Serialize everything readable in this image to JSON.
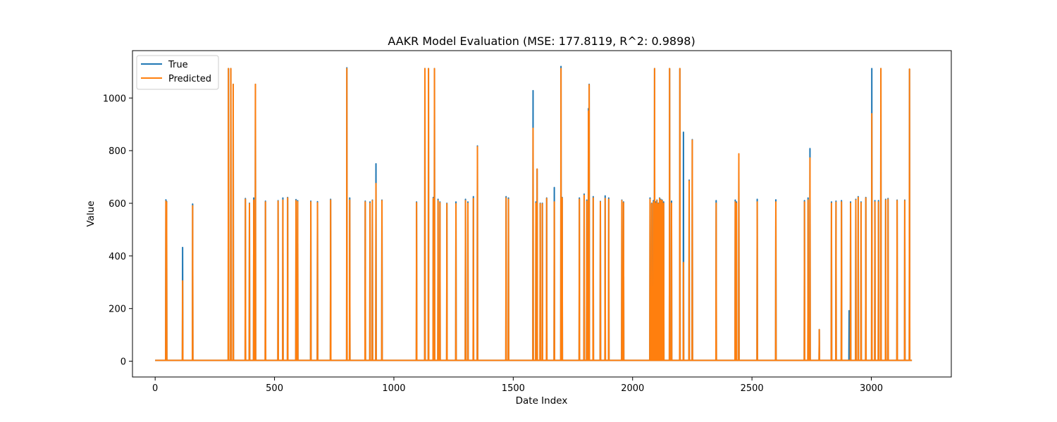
{
  "chart_data": {
    "type": "line",
    "title": "AAKR Model Evaluation (MSE: 177.8119, R^2: 0.9898)",
    "xlabel": "Date Index",
    "ylabel": "Value",
    "xlim": [
      -95,
      3335
    ],
    "ylim": [
      -60,
      1180
    ],
    "xticks": [
      0,
      500,
      1000,
      1500,
      2000,
      2500,
      3000
    ],
    "xtick_labels": [
      "0",
      "500",
      "1000",
      "1500",
      "2000",
      "2500",
      "3000"
    ],
    "yticks": [
      0,
      200,
      400,
      600,
      800,
      1000
    ],
    "ytick_labels": [
      "0",
      "200",
      "400",
      "600",
      "800",
      "1000"
    ],
    "grid": false,
    "legend_position": "top-left",
    "x_start": 0,
    "x_end": 3170,
    "baseline": 3,
    "series": [
      {
        "name": "True",
        "color": "#1f77b4",
        "spikes": [
          [
            45,
            613
          ],
          [
            48,
            607
          ],
          [
            115,
            432
          ],
          [
            157,
            597
          ],
          [
            307,
            1112
          ],
          [
            317,
            1112
          ],
          [
            327,
            1052
          ],
          [
            378,
            618
          ],
          [
            395,
            600
          ],
          [
            413,
            620
          ],
          [
            420,
            1052
          ],
          [
            462,
            608
          ],
          [
            515,
            610
          ],
          [
            535,
            620
          ],
          [
            555,
            622
          ],
          [
            590,
            614
          ],
          [
            597,
            610
          ],
          [
            652,
            608
          ],
          [
            680,
            606
          ],
          [
            735,
            615
          ],
          [
            803,
            1115
          ],
          [
            815,
            620
          ],
          [
            880,
            608
          ],
          [
            900,
            605
          ],
          [
            910,
            612
          ],
          [
            925,
            750
          ],
          [
            950,
            612
          ],
          [
            1095,
            605
          ],
          [
            1130,
            1112
          ],
          [
            1145,
            1112
          ],
          [
            1165,
            622
          ],
          [
            1170,
            1112
          ],
          [
            1185,
            615
          ],
          [
            1193,
            605
          ],
          [
            1222,
            600
          ],
          [
            1260,
            605
          ],
          [
            1300,
            615
          ],
          [
            1310,
            605
          ],
          [
            1333,
            625
          ],
          [
            1350,
            818
          ],
          [
            1470,
            625
          ],
          [
            1480,
            620
          ],
          [
            1583,
            1028
          ],
          [
            1595,
            605
          ],
          [
            1600,
            730
          ],
          [
            1613,
            600
          ],
          [
            1622,
            600
          ],
          [
            1640,
            620
          ],
          [
            1672,
            660
          ],
          [
            1700,
            1120
          ],
          [
            1705,
            622
          ],
          [
            1777,
            620
          ],
          [
            1797,
            635
          ],
          [
            1808,
            612
          ],
          [
            1815,
            960
          ],
          [
            1818,
            1052
          ],
          [
            1835,
            625
          ],
          [
            1865,
            607
          ],
          [
            1885,
            628
          ],
          [
            1900,
            620
          ],
          [
            1955,
            612
          ],
          [
            1962,
            605
          ],
          [
            2073,
            620
          ],
          [
            2080,
            600
          ],
          [
            2087,
            610
          ],
          [
            2092,
            1112
          ],
          [
            2097,
            605
          ],
          [
            2102,
            612
          ],
          [
            2108,
            600
          ],
          [
            2113,
            620
          ],
          [
            2118,
            615
          ],
          [
            2124,
            612
          ],
          [
            2130,
            605
          ],
          [
            2155,
            1112
          ],
          [
            2163,
            608
          ],
          [
            2198,
            1112
          ],
          [
            2213,
            870
          ],
          [
            2237,
            688
          ],
          [
            2250,
            842
          ],
          [
            2350,
            610
          ],
          [
            2430,
            612
          ],
          [
            2435,
            605
          ],
          [
            2445,
            755
          ],
          [
            2522,
            615
          ],
          [
            2600,
            613
          ],
          [
            2720,
            610
          ],
          [
            2735,
            620
          ],
          [
            2743,
            808
          ],
          [
            2782,
            120
          ],
          [
            2833,
            605
          ],
          [
            2852,
            608
          ],
          [
            2875,
            610
          ],
          [
            2907,
            192
          ],
          [
            2913,
            605
          ],
          [
            2935,
            615
          ],
          [
            2945,
            625
          ],
          [
            2957,
            605
          ],
          [
            2977,
            622
          ],
          [
            3002,
            1112
          ],
          [
            3015,
            610
          ],
          [
            3030,
            610
          ],
          [
            3040,
            1112
          ],
          [
            3060,
            615
          ],
          [
            3070,
            618
          ],
          [
            3108,
            612
          ],
          [
            3140,
            612
          ],
          [
            3160,
            1110
          ]
        ]
      },
      {
        "name": "Predicted",
        "color": "#ff7f0e",
        "spikes": [
          [
            45,
            608
          ],
          [
            48,
            604
          ],
          [
            115,
            305
          ],
          [
            157,
            590
          ],
          [
            307,
            1112
          ],
          [
            317,
            1112
          ],
          [
            327,
            1052
          ],
          [
            378,
            615
          ],
          [
            395,
            598
          ],
          [
            413,
            612
          ],
          [
            420,
            1052
          ],
          [
            462,
            605
          ],
          [
            515,
            608
          ],
          [
            535,
            612
          ],
          [
            555,
            620
          ],
          [
            590,
            610
          ],
          [
            597,
            606
          ],
          [
            652,
            605
          ],
          [
            680,
            602
          ],
          [
            735,
            612
          ],
          [
            803,
            1112
          ],
          [
            815,
            612
          ],
          [
            880,
            605
          ],
          [
            900,
            600
          ],
          [
            910,
            610
          ],
          [
            925,
            675
          ],
          [
            950,
            610
          ],
          [
            1095,
            602
          ],
          [
            1130,
            1112
          ],
          [
            1145,
            1112
          ],
          [
            1165,
            618
          ],
          [
            1170,
            1112
          ],
          [
            1185,
            610
          ],
          [
            1193,
            602
          ],
          [
            1222,
            598
          ],
          [
            1260,
            598
          ],
          [
            1300,
            610
          ],
          [
            1310,
            600
          ],
          [
            1333,
            618
          ],
          [
            1350,
            815
          ],
          [
            1470,
            620
          ],
          [
            1480,
            615
          ],
          [
            1583,
            885
          ],
          [
            1595,
            600
          ],
          [
            1600,
            730
          ],
          [
            1613,
            598
          ],
          [
            1622,
            598
          ],
          [
            1640,
            618
          ],
          [
            1672,
            605
          ],
          [
            1700,
            1112
          ],
          [
            1705,
            620
          ],
          [
            1777,
            615
          ],
          [
            1797,
            630
          ],
          [
            1808,
            608
          ],
          [
            1815,
            950
          ],
          [
            1818,
            1050
          ],
          [
            1835,
            620
          ],
          [
            1865,
            605
          ],
          [
            1885,
            618
          ],
          [
            1900,
            615
          ],
          [
            1955,
            610
          ],
          [
            1962,
            602
          ],
          [
            2073,
            615
          ],
          [
            2080,
            598
          ],
          [
            2087,
            605
          ],
          [
            2092,
            1112
          ],
          [
            2097,
            600
          ],
          [
            2102,
            610
          ],
          [
            2108,
            598
          ],
          [
            2113,
            618
          ],
          [
            2118,
            612
          ],
          [
            2124,
            610
          ],
          [
            2130,
            600
          ],
          [
            2155,
            1112
          ],
          [
            2163,
            600
          ],
          [
            2198,
            1112
          ],
          [
            2213,
            375
          ],
          [
            2237,
            685
          ],
          [
            2250,
            840
          ],
          [
            2350,
            600
          ],
          [
            2430,
            605
          ],
          [
            2435,
            600
          ],
          [
            2445,
            788
          ],
          [
            2522,
            605
          ],
          [
            2600,
            605
          ],
          [
            2720,
            605
          ],
          [
            2735,
            612
          ],
          [
            2743,
            772
          ],
          [
            2782,
            120
          ],
          [
            2833,
            600
          ],
          [
            2852,
            604
          ],
          [
            2875,
            605
          ],
          [
            2907,
            3
          ],
          [
            2913,
            600
          ],
          [
            2935,
            612
          ],
          [
            2945,
            622
          ],
          [
            2957,
            602
          ],
          [
            2977,
            620
          ],
          [
            3002,
            940
          ],
          [
            3015,
            605
          ],
          [
            3030,
            605
          ],
          [
            3040,
            1112
          ],
          [
            3060,
            612
          ],
          [
            3070,
            615
          ],
          [
            3108,
            610
          ],
          [
            3140,
            610
          ],
          [
            3160,
            1110
          ]
        ]
      }
    ]
  }
}
